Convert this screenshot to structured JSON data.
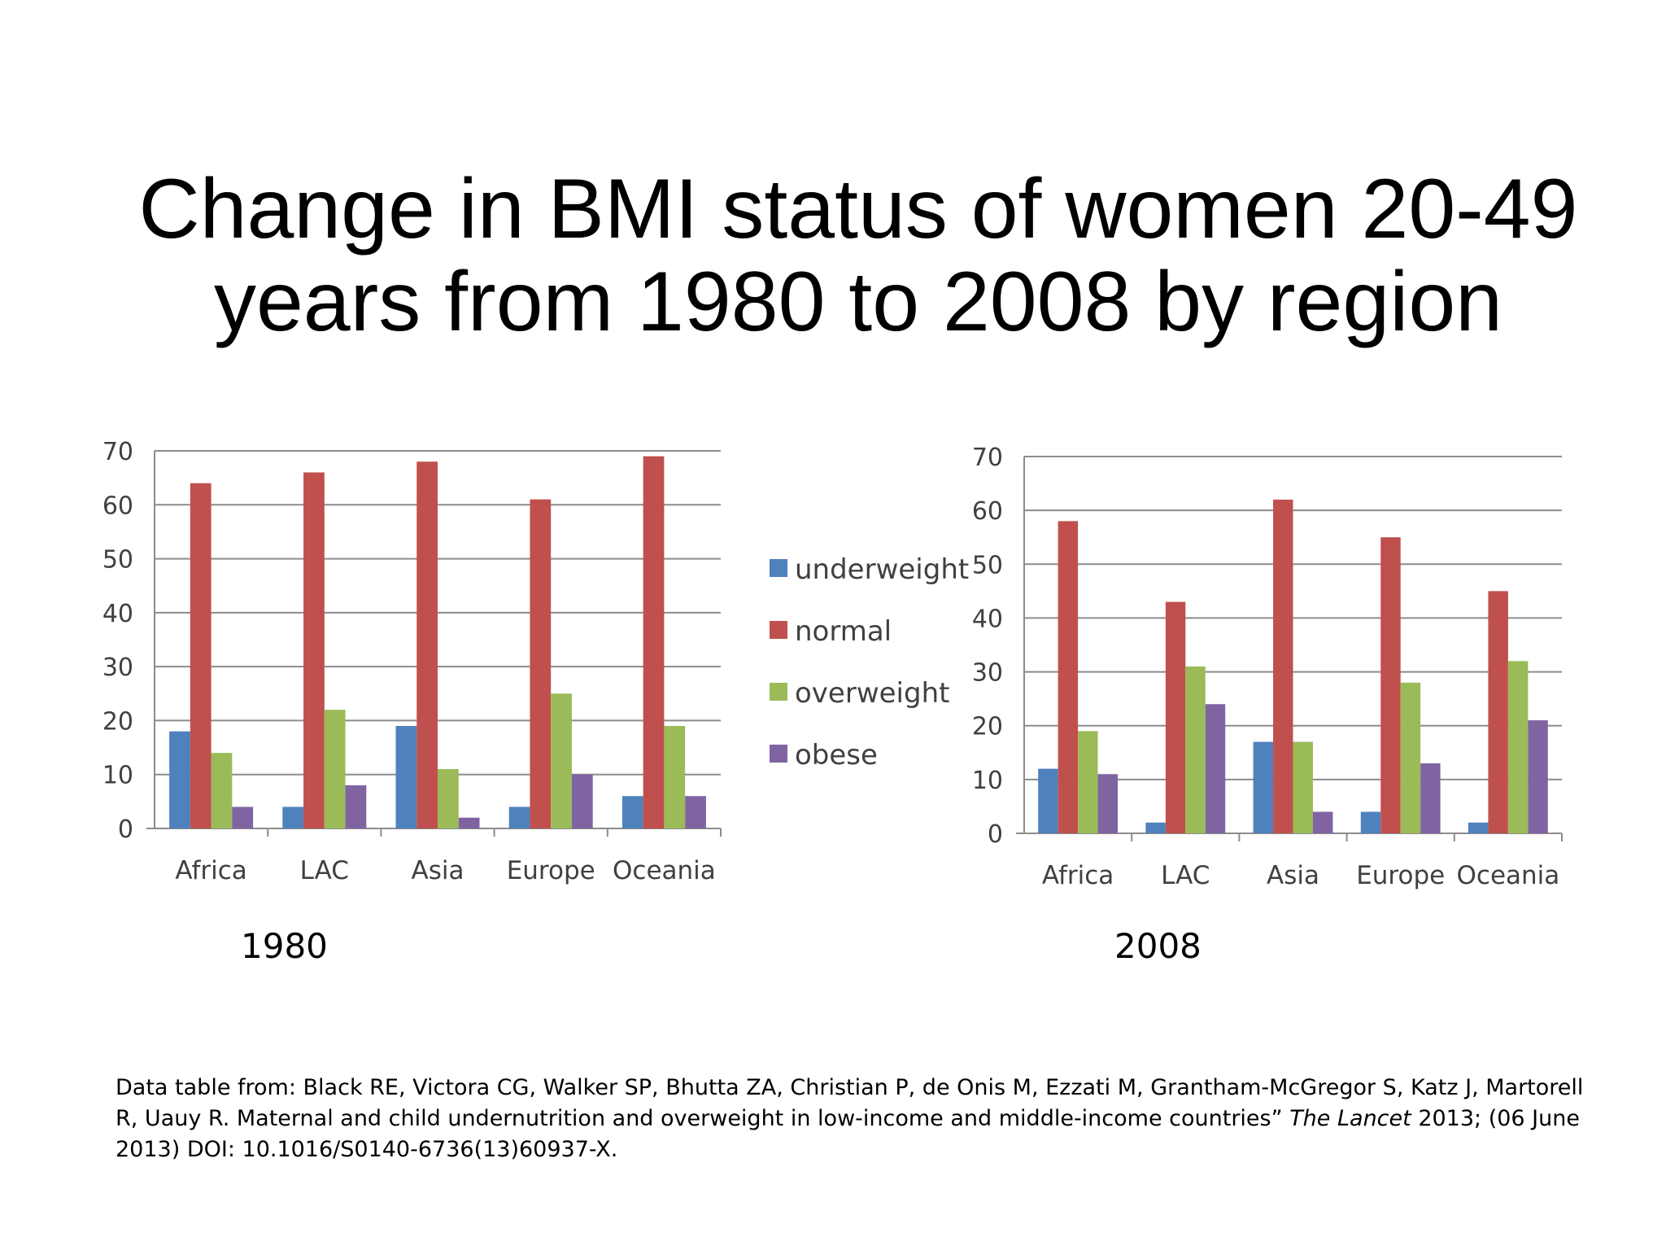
{
  "title": {
    "line1": "Change in BMI status of women 20-49",
    "line2": "years from 1980 to 2008 by region"
  },
  "legend": {
    "items": [
      {
        "label": "underweight",
        "color": "#4F81BD"
      },
      {
        "label": "normal",
        "color": "#C0504D"
      },
      {
        "label": "overweight",
        "color": "#9BBB59"
      },
      {
        "label": "obese",
        "color": "#8064A2"
      }
    ]
  },
  "chart_data": [
    {
      "type": "bar",
      "title": "1980",
      "categories": [
        "Africa",
        "LAC",
        "Asia",
        "Europe",
        "Oceania"
      ],
      "ylim": [
        0,
        70
      ],
      "yticks": [
        0,
        10,
        20,
        30,
        40,
        50,
        60,
        70
      ],
      "grid": true,
      "series": [
        {
          "name": "underweight",
          "values": [
            18,
            4,
            19,
            4,
            6
          ]
        },
        {
          "name": "normal",
          "values": [
            64,
            66,
            68,
            61,
            69
          ]
        },
        {
          "name": "overweight",
          "values": [
            14,
            22,
            11,
            25,
            19
          ]
        },
        {
          "name": "obese",
          "values": [
            4,
            8,
            2,
            10,
            6
          ]
        }
      ]
    },
    {
      "type": "bar",
      "title": "2008",
      "categories": [
        "Africa",
        "LAC",
        "Asia",
        "Europe",
        "Oceania"
      ],
      "ylim": [
        0,
        70
      ],
      "yticks": [
        0,
        10,
        20,
        30,
        40,
        50,
        60,
        70
      ],
      "grid": true,
      "series": [
        {
          "name": "underweight",
          "values": [
            12,
            2,
            17,
            4,
            2
          ]
        },
        {
          "name": "normal",
          "values": [
            58,
            43,
            62,
            55,
            45
          ]
        },
        {
          "name": "overweight",
          "values": [
            19,
            31,
            17,
            28,
            32
          ]
        },
        {
          "name": "obese",
          "values": [
            11,
            24,
            4,
            13,
            21
          ]
        }
      ]
    }
  ],
  "source": {
    "before_italic": "Data table from: Black RE, Victora CG, Walker SP, Bhutta ZA, Christian P, de Onis M, Ezzati M, Grantham-McGregor S, Katz J, Martorell R, Uauy R. Maternal and child undernutrition and overweight in low-income and middle-income countries” ",
    "italic": "The Lancet",
    "after_italic": " 2013; (06 June 2013) DOI: 10.1016/S0140-6736(13)60937-X."
  }
}
